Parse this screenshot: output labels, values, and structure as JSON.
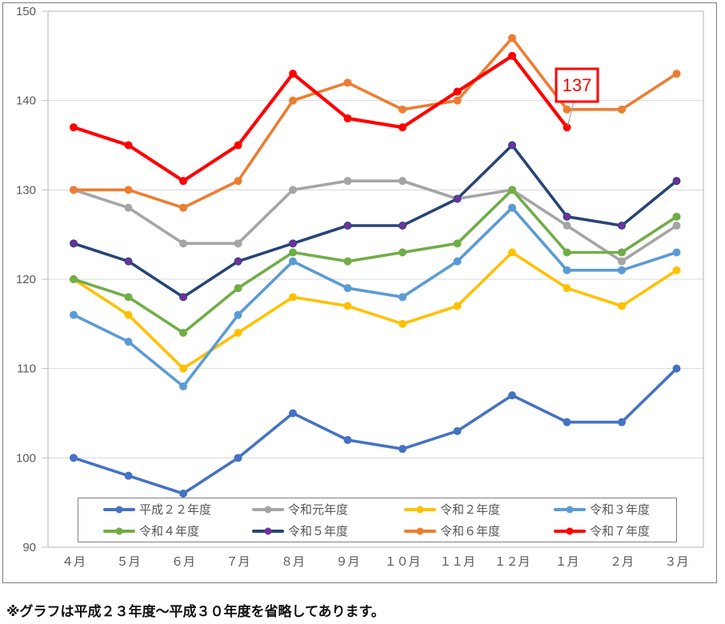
{
  "chart_data": {
    "type": "line",
    "title": "",
    "categories": [
      "４月",
      "５月",
      "６月",
      "７月",
      "８月",
      "９月",
      "１０月",
      "１１月",
      "１２月",
      "１月",
      "２月",
      "３月"
    ],
    "series": [
      {
        "name": "平成２２年度",
        "color": "#4472C4",
        "marker_color": "#4472C4",
        "values": [
          100,
          98,
          96,
          100,
          105,
          102,
          101,
          103,
          107,
          104,
          104,
          110
        ]
      },
      {
        "name": "令和元年度",
        "color": "#A5A5A5",
        "marker_color": "#A5A5A5",
        "values": [
          130,
          128,
          124,
          124,
          130,
          131,
          131,
          129,
          130,
          126,
          122,
          126
        ]
      },
      {
        "name": "令和２年度",
        "color": "#FFC000",
        "marker_color": "#FFC000",
        "values": [
          120,
          116,
          110,
          114,
          118,
          117,
          115,
          117,
          123,
          119,
          117,
          121
        ]
      },
      {
        "name": "令和３年度",
        "color": "#5B9BD5",
        "marker_color": "#5B9BD5",
        "values": [
          116,
          113,
          108,
          116,
          122,
          119,
          118,
          122,
          128,
          121,
          121,
          123
        ]
      },
      {
        "name": "令和４年度",
        "color": "#70AD47",
        "marker_color": "#70AD47",
        "values": [
          120,
          118,
          114,
          119,
          123,
          122,
          123,
          124,
          130,
          123,
          123,
          127
        ]
      },
      {
        "name": "令和５年度",
        "color": "#264478",
        "marker_color": "#7030A0",
        "values": [
          124,
          122,
          118,
          122,
          124,
          126,
          126,
          129,
          135,
          127,
          126,
          131
        ]
      },
      {
        "name": "令和６年度",
        "color": "#ED7D31",
        "marker_color": "#ED7D31",
        "values": [
          130,
          130,
          128,
          131,
          140,
          142,
          139,
          140,
          147,
          139,
          139,
          143
        ]
      },
      {
        "name": "令和７年度",
        "color": "#FF0000",
        "marker_color": "#FF0000",
        "values": [
          137,
          135,
          131,
          135,
          143,
          138,
          137,
          141,
          145,
          137,
          null,
          null
        ]
      }
    ],
    "ylim": [
      90,
      150
    ],
    "yticks": [
      90,
      100,
      110,
      120,
      130,
      140,
      150
    ],
    "grid": true,
    "legend_position": "bottom-inside",
    "annotation": {
      "text": "137",
      "series": "令和７年度",
      "category": "１月",
      "value": 137
    }
  },
  "note": "※グラフは平成２３年度～平成３０年度を省略してあります。",
  "colors": {
    "grid": "#D9D9D9",
    "plot_border": "#BFBFBF",
    "outer_border": "#7F7F7F",
    "tick_label": "#595959",
    "annotation_red": "#FF0000",
    "leader_line": "#A6A6A6"
  }
}
